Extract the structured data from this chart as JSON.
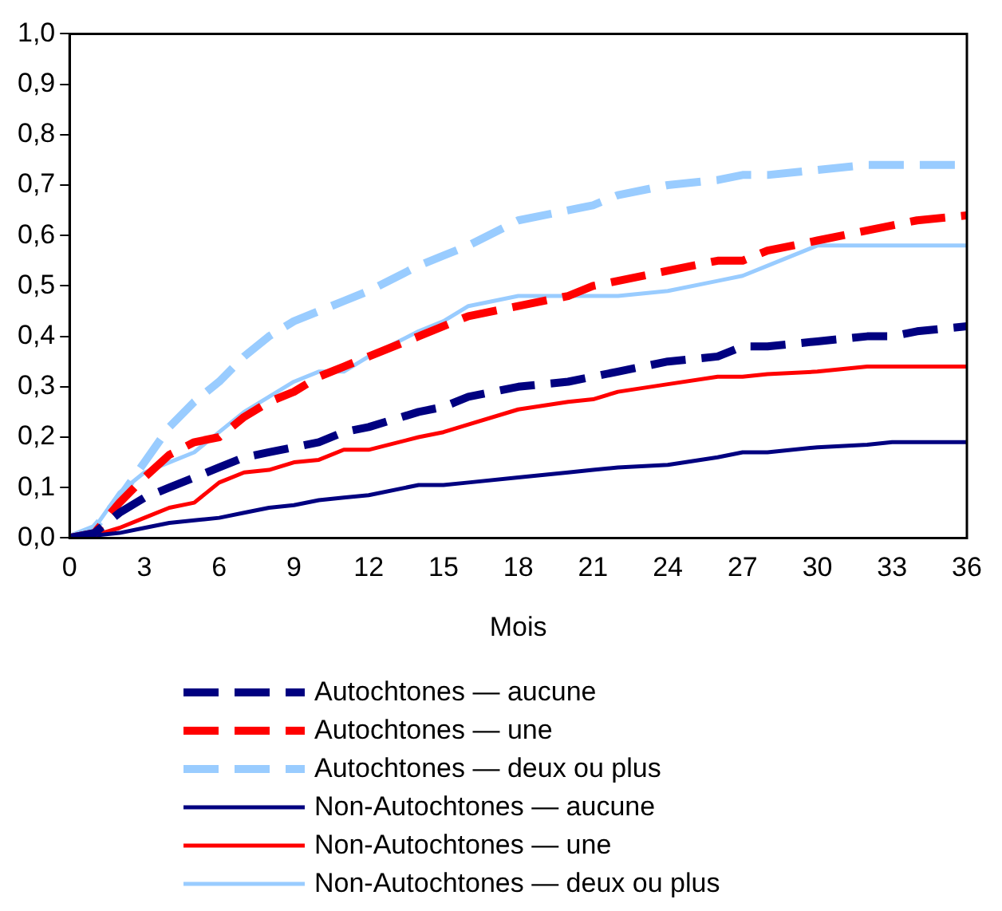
{
  "chart_data": {
    "type": "line",
    "xlabel": "Mois",
    "legend": "bottom",
    "grid": false,
    "marker": "none",
    "xlim": [
      0,
      36
    ],
    "xticks": [
      0,
      3,
      6,
      9,
      12,
      15,
      18,
      21,
      24,
      27,
      30,
      33,
      36
    ],
    "ylim": [
      0,
      1
    ],
    "yticks": [
      {
        "value": 0,
        "label": "0,0"
      },
      {
        "value": 0.1,
        "label": "0,1"
      },
      {
        "value": 0.2,
        "label": "0,2"
      },
      {
        "value": 0.3,
        "label": "0,3"
      },
      {
        "value": 0.4,
        "label": "0,4"
      },
      {
        "value": 0.5,
        "label": "0,5"
      },
      {
        "value": 0.6,
        "label": "0,6"
      },
      {
        "value": 0.7,
        "label": "0,7"
      },
      {
        "value": 0.8,
        "label": "0,8"
      },
      {
        "value": 0.9,
        "label": "0,9"
      },
      {
        "value": 1,
        "label": "1,0"
      }
    ],
    "x": [
      0,
      1,
      2,
      3,
      4,
      5,
      6,
      7,
      8,
      9,
      10,
      11,
      12,
      14,
      15,
      16,
      18,
      20,
      21,
      22,
      24,
      26,
      27,
      28,
      30,
      32,
      33,
      34,
      36
    ],
    "series": [
      {
        "name": "Autochtones — aucune",
        "color": "#000080",
        "line_style": "dashed",
        "values": [
          0,
          0.01,
          0.05,
          0.08,
          0.1,
          0.12,
          0.14,
          0.16,
          0.17,
          0.18,
          0.19,
          0.21,
          0.22,
          0.25,
          0.26,
          0.28,
          0.3,
          0.31,
          0.32,
          0.33,
          0.35,
          0.36,
          0.38,
          0.38,
          0.39,
          0.4,
          0.4,
          0.41,
          0.42
        ]
      },
      {
        "name": "Autochtones — une",
        "color": "#ff0000",
        "line_style": "dashed",
        "values": [
          0,
          0.01,
          0.07,
          0.12,
          0.165,
          0.19,
          0.2,
          0.24,
          0.27,
          0.29,
          0.32,
          0.34,
          0.36,
          0.4,
          0.42,
          0.44,
          0.46,
          0.48,
          0.5,
          0.51,
          0.53,
          0.55,
          0.55,
          0.57,
          0.59,
          0.61,
          0.62,
          0.63,
          0.64
        ]
      },
      {
        "name": "Autochtones — deux ou plus",
        "color": "#99ccff",
        "line_style": "dashed",
        "values": [
          0,
          0.02,
          0.08,
          0.15,
          0.22,
          0.27,
          0.31,
          0.36,
          0.4,
          0.43,
          0.45,
          0.47,
          0.49,
          0.54,
          0.56,
          0.58,
          0.63,
          0.65,
          0.66,
          0.68,
          0.7,
          0.71,
          0.72,
          0.72,
          0.73,
          0.74,
          0.74,
          0.74,
          0.74
        ]
      },
      {
        "name": "Non-Autochtones — aucune",
        "color": "#000080",
        "line_style": "solid",
        "values": [
          0,
          0.005,
          0.01,
          0.02,
          0.03,
          0.035,
          0.04,
          0.05,
          0.06,
          0.065,
          0.075,
          0.08,
          0.085,
          0.105,
          0.105,
          0.11,
          0.12,
          0.13,
          0.135,
          0.14,
          0.145,
          0.16,
          0.17,
          0.17,
          0.18,
          0.185,
          0.19,
          0.19,
          0.19
        ]
      },
      {
        "name": "Non-Autochtones — une",
        "color": "#ff0000",
        "line_style": "solid",
        "values": [
          0,
          0.005,
          0.02,
          0.04,
          0.06,
          0.07,
          0.11,
          0.13,
          0.135,
          0.15,
          0.155,
          0.175,
          0.175,
          0.2,
          0.21,
          0.225,
          0.255,
          0.27,
          0.275,
          0.29,
          0.305,
          0.32,
          0.32,
          0.325,
          0.33,
          0.34,
          0.34,
          0.34,
          0.34
        ]
      },
      {
        "name": "Non-Autochtones — deux ou plus",
        "color": "#99ccff",
        "line_style": "solid",
        "values": [
          0,
          0.02,
          0.09,
          0.13,
          0.15,
          0.17,
          0.21,
          0.25,
          0.28,
          0.31,
          0.33,
          0.33,
          0.36,
          0.41,
          0.43,
          0.46,
          0.48,
          0.48,
          0.48,
          0.48,
          0.49,
          0.51,
          0.52,
          0.54,
          0.58,
          0.58,
          0.58,
          0.58,
          0.58
        ]
      }
    ]
  }
}
